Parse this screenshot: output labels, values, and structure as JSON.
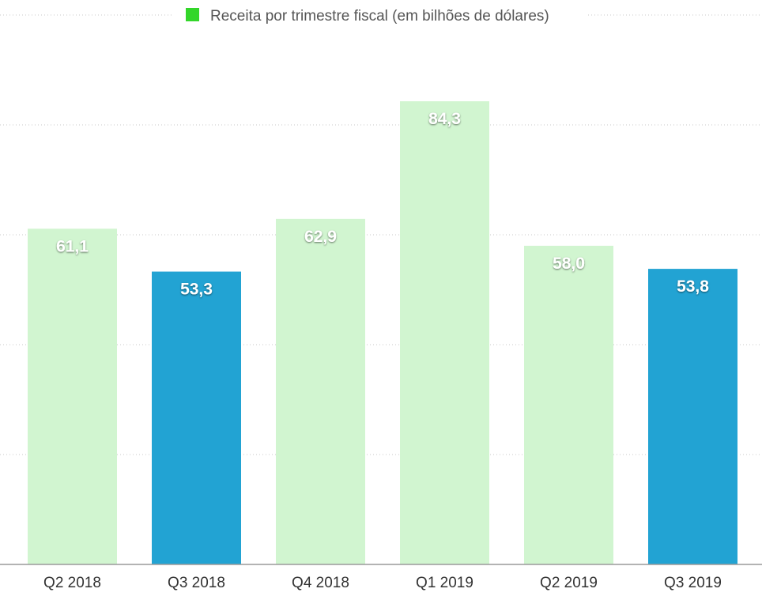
{
  "chart_data": {
    "type": "bar",
    "legend": {
      "label": "Receita por trimestre fiscal (em bilhões de dólares)",
      "color": "#33d62a",
      "placement": "top-center"
    },
    "categories": [
      "Q2 2018",
      "Q3 2018",
      "Q4 2018",
      "Q1 2019",
      "Q2 2019",
      "Q3 2019"
    ],
    "values": [
      61.1,
      53.3,
      62.9,
      84.3,
      58.0,
      53.8
    ],
    "value_labels": [
      "61,1",
      "53,3",
      "62,9",
      "84,3",
      "58,0",
      "53,8"
    ],
    "bar_colors": [
      "#d1f5d0",
      "#22a3d3",
      "#d1f5d0",
      "#d1f5d0",
      "#d1f5d0",
      "#22a3d3"
    ],
    "ylim": [
      0,
      100
    ],
    "grid": true,
    "y_ticks_shown": false
  }
}
